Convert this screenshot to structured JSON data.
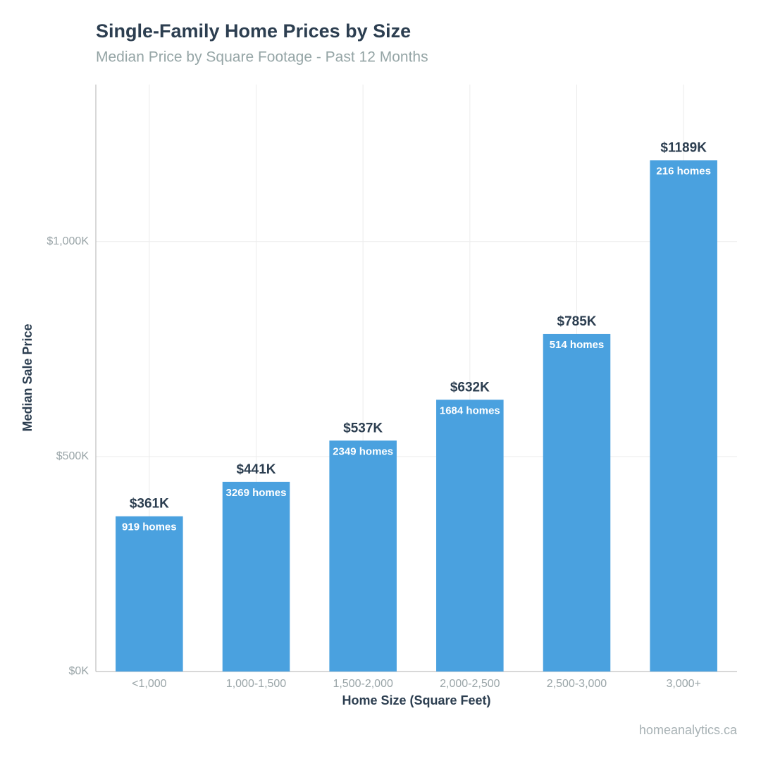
{
  "chart_data": {
    "type": "bar",
    "title": "Single-Family Home Prices by Size",
    "subtitle": "Median Price by Square Footage - Past 12 Months",
    "x_label": "Home Size (Square Feet)",
    "y_label": "Median Sale Price",
    "source": "homeanalytics.ca",
    "categories": [
      "<1,000",
      "1,000-1,500",
      "1,500-2,000",
      "2,000-2,500",
      "2,500-3,000",
      "3,000+"
    ],
    "values": [
      361,
      441,
      537,
      632,
      785,
      1189
    ],
    "value_labels": [
      "$361K",
      "$441K",
      "$537K",
      "$632K",
      "$785K",
      "$1189K"
    ],
    "count_labels": [
      "919 homes",
      "3269 homes",
      "2349 homes",
      "1684 homes",
      "514 homes",
      "216 homes"
    ],
    "color": "#4aa1df",
    "ylim": [
      0,
      1365
    ],
    "yticks": [
      {
        "value": 0,
        "label": "$0K"
      },
      {
        "value": 500,
        "label": "$500K"
      },
      {
        "value": 1000,
        "label": "$1,000K"
      }
    ],
    "grid": true
  }
}
